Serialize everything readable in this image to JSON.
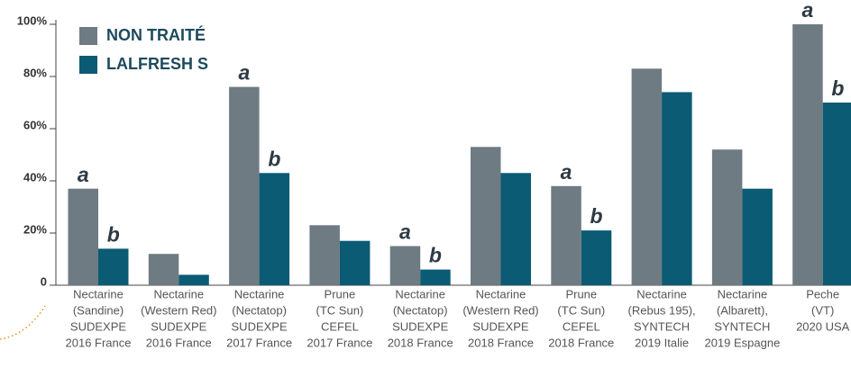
{
  "chart_data": {
    "type": "bar",
    "categories": [
      [
        "Nectarine",
        "(Sandine)",
        "SUDEXPE",
        "2016 France"
      ],
      [
        "Nectarine",
        "(Western Red)",
        "SUDEXPE",
        "2016 France"
      ],
      [
        "Nectarine",
        "(Nectatop)",
        "SUDEXPE",
        "2017 France"
      ],
      [
        "Prune",
        "(TC Sun)",
        "CEFEL",
        "2017 France"
      ],
      [
        "Nectarine",
        "(Nectatop)",
        "SUDEXPE",
        "2018 France"
      ],
      [
        "Nectarine",
        "(Western Red)",
        "SUDEXPE",
        "2018 France"
      ],
      [
        "Prune",
        "(TC Sun)",
        "CEFEL",
        "2018 France"
      ],
      [
        "Nectarine",
        "(Rebus 195),",
        "SYNTECH",
        "2019 Italie"
      ],
      [
        "Nectarine",
        "(Albarett),",
        "SYNTECH",
        "2019 Espagne"
      ],
      [
        "Peche",
        "(VT)",
        "2020 USA"
      ]
    ],
    "series": [
      {
        "name": "NON TRAITÉ",
        "color": "#6e7b83",
        "values": [
          37,
          12,
          76,
          23,
          15,
          53,
          38,
          83,
          52,
          100
        ],
        "annotations": [
          "a",
          null,
          "a",
          null,
          "a",
          null,
          "a",
          null,
          null,
          "a"
        ]
      },
      {
        "name": "LALFRESH S",
        "color": "#0b5b74",
        "values": [
          14,
          4,
          43,
          17,
          6,
          43,
          21,
          74,
          37,
          70
        ],
        "annotations": [
          "b",
          null,
          "b",
          null,
          "b",
          null,
          "b",
          null,
          null,
          "b"
        ]
      }
    ],
    "ylim": [
      0,
      100
    ],
    "yticks": [
      0,
      {
        "value": 20,
        "label": "20%"
      },
      {
        "value": 40,
        "label": "40%"
      },
      {
        "value": 60,
        "label": "60%"
      },
      {
        "value": 80,
        "label": "80%"
      },
      {
        "value": 100,
        "label": "100%"
      }
    ],
    "legend": "top-left"
  }
}
